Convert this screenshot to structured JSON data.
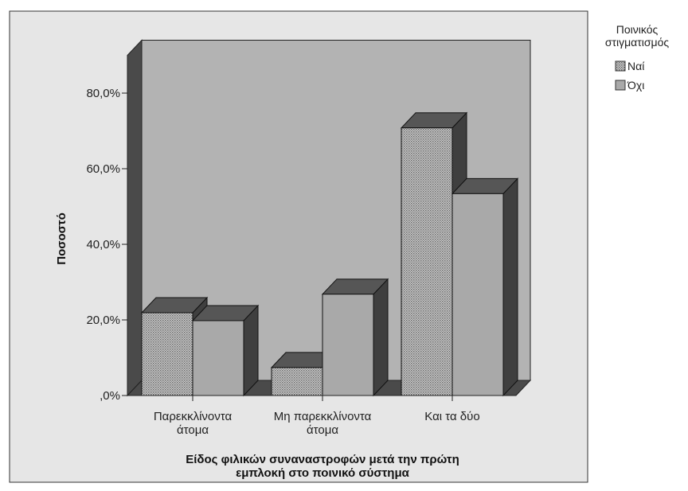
{
  "chart_data": {
    "type": "bar",
    "style": "3d-clustered",
    "categories": [
      [
        "Παρεκκλίνοντα",
        "άτομα"
      ],
      [
        "Μη παρεκκλίνοντα",
        "άτομα"
      ],
      [
        "Και τα δύο"
      ]
    ],
    "series": [
      {
        "name": "Ναί",
        "values": [
          21.9,
          7.4,
          70.8
        ],
        "pattern": "dotted",
        "color": "#a8a8a8"
      },
      {
        "name": "Όχι",
        "values": [
          19.8,
          26.8,
          53.4
        ],
        "pattern": "solid",
        "color": "#a9a9a9"
      }
    ],
    "xlabel": [
      "Είδος φιλικών συναναστροφών μετά την πρώτη",
      "εμπλοκή στο ποινικό σύστημα"
    ],
    "ylabel": "Ποσοστό",
    "ylim": [
      0,
      90
    ],
    "yticks": [
      0,
      20,
      40,
      60,
      80
    ],
    "ytick_labels": [
      ",0%",
      "20,0%",
      "40,0%",
      "60,0%",
      "80,0%"
    ],
    "legend": {
      "title": [
        "Ποινικός",
        "στιγματισμός"
      ],
      "placement": "top-right"
    },
    "colors": {
      "frame_bg": "#e6e6e6",
      "plot_bg": "#b3b3b3",
      "wall_dark": "#4a4a4a",
      "bar_top": "#565656",
      "bar_side": "#3f3f3f"
    }
  }
}
